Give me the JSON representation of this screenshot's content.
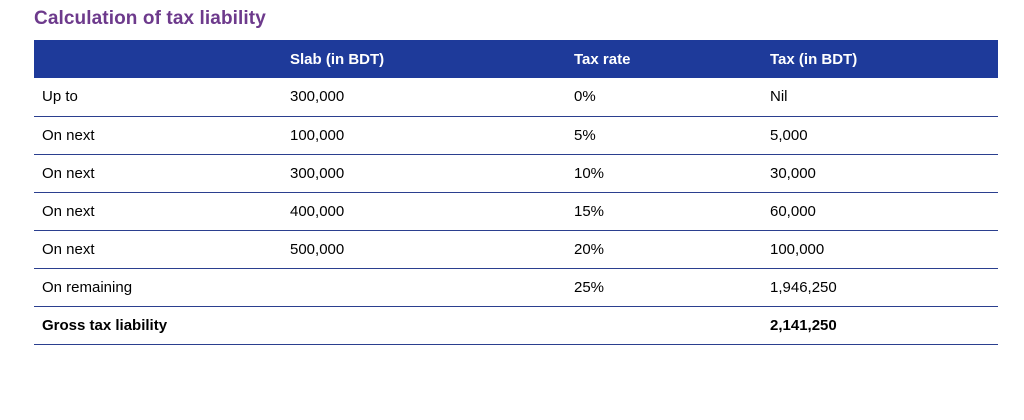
{
  "title": "Calculation of tax liability",
  "headers": [
    "",
    "Slab (in BDT)",
    "Tax rate",
    "Tax (in BDT)"
  ],
  "rows": [
    [
      "Up to",
      "300,000",
      "0%",
      "Nil"
    ],
    [
      "On next",
      "100,000",
      "5%",
      "5,000"
    ],
    [
      "On next",
      "300,000",
      "10%",
      "30,000"
    ],
    [
      "On next",
      "400,000",
      "15%",
      "60,000"
    ],
    [
      "On next",
      "500,000",
      "20%",
      "100,000"
    ],
    [
      "On remaining",
      "",
      "25%",
      "1,946,250"
    ],
    [
      "Gross tax liability",
      "",
      "",
      "2,141,250"
    ]
  ],
  "colors": {
    "title": "#6d3a8c",
    "header_bg": "#1e3a9a",
    "rule": "#2b3f8f"
  }
}
